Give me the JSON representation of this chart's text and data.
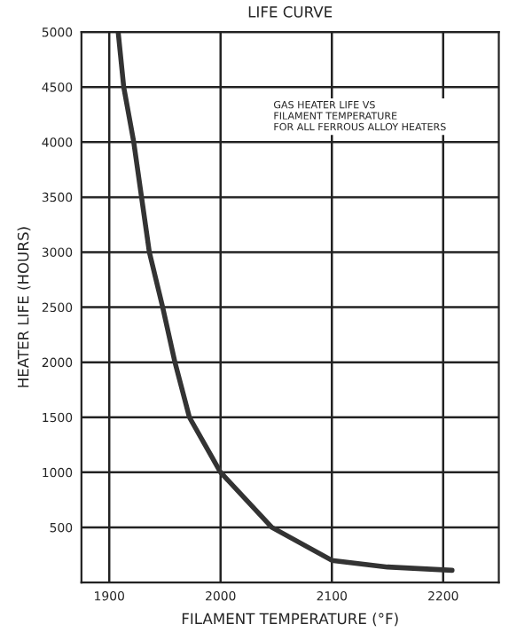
{
  "chart_data": {
    "type": "line",
    "title": "LIFE CURVE",
    "xlabel": "FILAMENT TEMPERATURE (°F)",
    "ylabel": "HEATER LIFE (HOURS)",
    "annotations": [
      "GAS HEATER LIFE VS\nFILAMENT TEMPERATURE\nFOR ALL FERROUS ALLOY HEATERS"
    ],
    "series": [
      {
        "color": "#333333",
        "x": [
          1908,
          1913,
          1922,
          1936,
          1948,
          1959,
          1972,
          2000,
          2046,
          2100,
          2150,
          2208
        ],
        "values": [
          5000,
          4500,
          4000,
          3000,
          2500,
          2000,
          1500,
          1000,
          500,
          200,
          140,
          110
        ]
      }
    ],
    "xlim": [
      1875,
      2250
    ],
    "xticks": [
      1900,
      2000,
      2100,
      2200
    ],
    "ylim": [
      0,
      5000
    ],
    "yticks": [
      500,
      1000,
      1500,
      2000,
      2500,
      3000,
      3500,
      4000,
      4500,
      5000
    ],
    "grid": true,
    "marker": "none",
    "line_style": "solid"
  }
}
